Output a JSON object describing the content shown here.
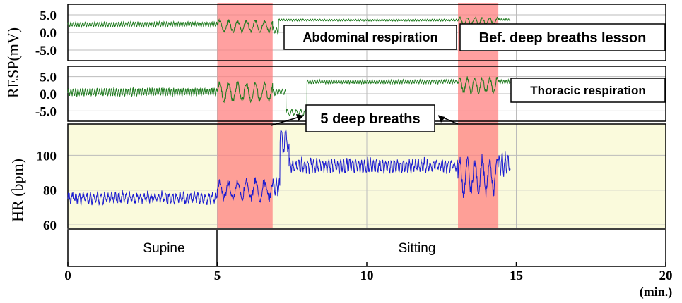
{
  "chart_data": {
    "type": "line",
    "x_unit": "(min.)",
    "x_ticks": [
      "0",
      "5",
      "10",
      "15",
      "20"
    ],
    "xlim": [
      0,
      20
    ],
    "highlight_periods": [
      [
        5.0,
        6.85
      ],
      [
        13.05,
        14.4
      ]
    ],
    "panels": [
      {
        "id": "resp-abdominal",
        "y_ticks": [
          "5.0",
          "0.0",
          "-5.0"
        ],
        "ylim": [
          -8,
          8
        ],
        "line_color": "#1e7a1e",
        "series": {
          "name": "Abdominal respiration",
          "segments": [
            {
              "start": 0.0,
              "end": 5.0,
              "baseline": 2.3,
              "amplitude": 0.6,
              "period": 0.08
            },
            {
              "start": 5.0,
              "end": 6.85,
              "baseline": 1.8,
              "amplitude": 1.5,
              "period": 0.3
            },
            {
              "start": 6.85,
              "end": 7.05,
              "baseline": 0.5,
              "amplitude": 0.8,
              "period": 0.1
            },
            {
              "start": 7.05,
              "end": 13.05,
              "baseline": 3.5,
              "amplitude": 0.25,
              "period": 0.08
            },
            {
              "start": 13.05,
              "end": 14.4,
              "baseline": 3.2,
              "amplitude": 1.0,
              "period": 0.25
            },
            {
              "start": 14.4,
              "end": 14.8,
              "baseline": 3.6,
              "amplitude": 0.3,
              "period": 0.08
            }
          ]
        },
        "annotations": [
          "Abdominal respiration",
          "Bef. deep breaths lesson"
        ]
      },
      {
        "id": "resp-thoracic",
        "y_ticks": [
          "5.0",
          "0.0",
          "-5.0"
        ],
        "ylim": [
          -8,
          8
        ],
        "line_color": "#1e7a1e",
        "series": {
          "name": "Thoracic respiration",
          "segments": [
            {
              "start": 0.0,
              "end": 5.0,
              "baseline": 0.5,
              "amplitude": 1.0,
              "period": 0.08
            },
            {
              "start": 5.0,
              "end": 6.85,
              "baseline": 0.5,
              "amplitude": 2.5,
              "period": 0.3
            },
            {
              "start": 6.85,
              "end": 7.3,
              "baseline": 0.5,
              "amplitude": 0.8,
              "period": 0.1
            },
            {
              "start": 7.3,
              "end": 8.0,
              "baseline": -5.5,
              "amplitude": 0.8,
              "period": 0.15
            },
            {
              "start": 8.0,
              "end": 13.05,
              "baseline": 3.5,
              "amplitude": 0.5,
              "period": 0.08
            },
            {
              "start": 13.05,
              "end": 14.4,
              "baseline": 2.5,
              "amplitude": 2.0,
              "period": 0.25
            },
            {
              "start": 14.4,
              "end": 14.8,
              "baseline": 3.5,
              "amplitude": 0.5,
              "period": 0.08
            }
          ]
        },
        "annotations": [
          "Thoracic respiration",
          "5 deep breaths"
        ]
      },
      {
        "id": "heart-rate",
        "y_ticks": [
          "60",
          "80",
          "100"
        ],
        "ylim": [
          58,
          118
        ],
        "line_color": "#1a1ad0",
        "series": {
          "name": "HR",
          "segments": [
            {
              "start": 0.0,
              "end": 5.0,
              "baseline": 75.5,
              "amplitude": 2.5,
              "period": 0.12
            },
            {
              "start": 5.0,
              "end": 6.85,
              "baseline": 80,
              "amplitude": 5,
              "period": 0.3
            },
            {
              "start": 6.85,
              "end": 7.1,
              "baseline": 82,
              "amplitude": 4,
              "period": 0.1
            },
            {
              "start": 7.1,
              "end": 7.4,
              "baseline": 108,
              "amplitude": 6,
              "period": 0.15
            },
            {
              "start": 7.4,
              "end": 13.05,
              "baseline": 94,
              "amplitude": 3,
              "period": 0.1
            },
            {
              "start": 13.05,
              "end": 14.4,
              "baseline": 88,
              "amplitude": 9,
              "period": 0.25
            },
            {
              "start": 14.4,
              "end": 14.8,
              "baseline": 95,
              "amplitude": 5,
              "period": 0.1
            }
          ]
        }
      }
    ],
    "posture": [
      {
        "label": "Supine",
        "start": 0,
        "end": 5
      },
      {
        "label": "Sitting",
        "start": 5,
        "end": 20
      }
    ]
  },
  "labels": {
    "resp_ylabel": "RESP(mV)",
    "hr_ylabel": "HR (bpm)",
    "abdominal": "Abdominal respiration",
    "bef_deep": "Bef. deep breaths lesson",
    "thoracic": "Thoracic respiration",
    "deep_breaths": "5 deep breaths",
    "x_unit": "(min.)",
    "supine": "Supine",
    "sitting": "Sitting"
  },
  "colors": {
    "highlight": "#ff8080",
    "hr_background": "#fafadc",
    "resp_line": "#1e7a1e",
    "hr_line": "#1a1ad0"
  }
}
